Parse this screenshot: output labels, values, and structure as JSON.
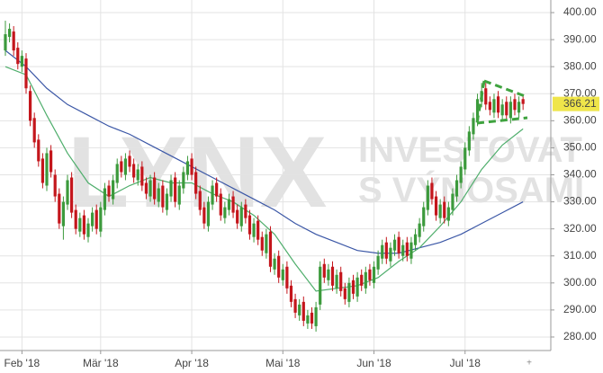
{
  "chart_data": {
    "type": "candlestick",
    "watermark_logo": "LYNX",
    "watermark_slogan": [
      "INVESTOVAT",
      "S VÝNOSAMI"
    ],
    "xlim": [
      -1.3,
      131.7
    ],
    "ylim": [
      275,
      403
    ],
    "xticks": [
      {
        "value": 4,
        "label": "Feb '18"
      },
      {
        "value": 23,
        "label": "Mär '18"
      },
      {
        "value": 45,
        "label": "Apr '18"
      },
      {
        "value": 67,
        "label": "Mai '18"
      },
      {
        "value": 89,
        "label": "Jun '18"
      },
      {
        "value": 111,
        "label": "Jul '18"
      }
    ],
    "yticks": [
      {
        "value": 280,
        "label": "280.00"
      },
      {
        "value": 290,
        "label": "290.00"
      },
      {
        "value": 300,
        "label": "300.00"
      },
      {
        "value": 310,
        "label": "310.00"
      },
      {
        "value": 320,
        "label": "320.00"
      },
      {
        "value": 330,
        "label": "330.00"
      },
      {
        "value": 340,
        "label": "340.00"
      },
      {
        "value": 350,
        "label": "350.00"
      },
      {
        "value": 360,
        "label": "360.00"
      },
      {
        "value": 370,
        "label": "370.00"
      },
      {
        "value": 380,
        "label": "380.00"
      },
      {
        "value": 390,
        "label": "390.00"
      },
      {
        "value": 400,
        "label": "400.00"
      }
    ],
    "grid": true,
    "up_color": "#3c9a3c",
    "down_color": "#c4161c",
    "last_label_color": "#efe54a",
    "open": [
      386,
      391,
      393,
      387,
      380,
      383,
      371,
      361,
      353,
      346,
      336,
      349,
      340,
      333,
      321,
      329,
      339,
      327,
      319,
      325,
      317,
      321,
      327,
      319,
      327,
      336,
      331,
      337,
      345,
      340,
      347,
      344,
      338,
      343,
      337,
      332,
      339,
      330,
      336,
      327,
      332,
      339,
      329,
      335,
      340,
      346,
      341,
      334,
      328,
      321,
      329,
      337,
      333,
      324,
      327,
      332,
      327,
      321,
      329,
      325,
      317,
      323,
      317,
      311,
      319,
      305,
      310,
      301,
      306,
      299,
      294,
      288,
      293,
      285,
      289,
      284,
      292,
      307,
      301,
      306,
      298,
      304,
      298,
      293,
      301,
      295,
      303,
      298,
      305,
      300,
      305,
      309,
      315,
      308,
      312,
      317,
      310,
      315,
      309,
      314,
      317,
      321,
      327,
      337,
      332,
      324,
      330,
      323,
      327,
      332,
      337,
      342,
      349,
      355,
      360,
      367,
      372,
      367,
      363,
      369,
      362,
      367,
      361,
      368,
      363,
      368
    ],
    "high": [
      397,
      396,
      395,
      389,
      386,
      385,
      373,
      363,
      355,
      348,
      350,
      351,
      342,
      335,
      332,
      340,
      341,
      329,
      326,
      327,
      324,
      328,
      329,
      330,
      337,
      338,
      340,
      346,
      347,
      348,
      349,
      346,
      344,
      345,
      339,
      340,
      341,
      337,
      338,
      335,
      340,
      341,
      338,
      343,
      347,
      348,
      343,
      336,
      330,
      332,
      338,
      339,
      335,
      330,
      333,
      334,
      329,
      330,
      331,
      327,
      324,
      325,
      319,
      320,
      321,
      311,
      312,
      307,
      308,
      301,
      296,
      294,
      295,
      290,
      291,
      293,
      308,
      309,
      307,
      308,
      305,
      306,
      300,
      302,
      303,
      304,
      305,
      306,
      307,
      308,
      312,
      316,
      317,
      315,
      318,
      319,
      316,
      317,
      317,
      320,
      324,
      330,
      338,
      339,
      334,
      331,
      332,
      330,
      335,
      340,
      345,
      352,
      358,
      363,
      370,
      374,
      374,
      369,
      370,
      371,
      368,
      369,
      369,
      370,
      369,
      369
    ],
    "low": [
      384,
      389,
      384,
      379,
      378,
      370,
      358,
      350,
      343,
      335,
      334,
      339,
      330,
      320,
      316,
      327,
      324,
      318,
      317,
      316,
      315,
      319,
      318,
      317,
      325,
      330,
      329,
      335,
      339,
      338,
      341,
      337,
      336,
      334,
      331,
      330,
      329,
      328,
      326,
      325,
      330,
      328,
      327,
      333,
      338,
      338,
      331,
      325,
      320,
      319,
      327,
      330,
      323,
      322,
      325,
      324,
      320,
      319,
      322,
      316,
      315,
      314,
      310,
      309,
      304,
      303,
      300,
      299,
      296,
      291,
      287,
      286,
      284,
      283,
      283,
      282,
      290,
      300,
      299,
      297,
      296,
      295,
      292,
      291,
      294,
      293,
      297,
      296,
      299,
      298,
      303,
      307,
      307,
      306,
      310,
      309,
      308,
      308,
      307,
      312,
      315,
      319,
      325,
      329,
      323,
      322,
      322,
      321,
      325,
      330,
      335,
      340,
      347,
      353,
      358,
      365,
      364,
      362,
      361,
      361,
      360,
      360,
      359,
      362,
      361,
      364
    ],
    "close": [
      392,
      394,
      386,
      381,
      384,
      372,
      360,
      352,
      345,
      337,
      348,
      341,
      332,
      322,
      330,
      338,
      326,
      320,
      324,
      318,
      322,
      326,
      320,
      328,
      335,
      332,
      338,
      344,
      341,
      346,
      343,
      339,
      342,
      336,
      333,
      338,
      331,
      335,
      328,
      333,
      338,
      330,
      336,
      341,
      345,
      340,
      333,
      327,
      322,
      330,
      336,
      332,
      325,
      328,
      331,
      326,
      322,
      328,
      324,
      318,
      322,
      316,
      312,
      318,
      306,
      309,
      302,
      305,
      298,
      293,
      289,
      292,
      286,
      288,
      285,
      291,
      306,
      302,
      305,
      299,
      303,
      297,
      294,
      300,
      296,
      302,
      299,
      304,
      301,
      306,
      310,
      314,
      309,
      313,
      316,
      311,
      314,
      310,
      315,
      318,
      322,
      328,
      336,
      331,
      325,
      329,
      324,
      328,
      333,
      338,
      343,
      350,
      356,
      361,
      368,
      371,
      366,
      364,
      368,
      363,
      366,
      362,
      367,
      364,
      367,
      366.21
    ],
    "lines": [
      {
        "color": "#3b57a6",
        "x": [
          0,
          5,
          10,
          15,
          20,
          25,
          30,
          35,
          40,
          45,
          50,
          55,
          60,
          65,
          70,
          75,
          80,
          85,
          90,
          95,
          100,
          105,
          110,
          115,
          120,
          125
        ],
        "values": [
          386,
          380,
          372,
          366,
          362,
          358,
          355,
          351,
          347,
          343,
          339,
          335,
          331,
          327,
          322,
          318,
          315,
          312,
          311,
          311,
          313,
          315,
          318,
          322,
          326,
          330
        ]
      },
      {
        "color": "#4fae6c",
        "x": [
          0,
          5,
          10,
          15,
          20,
          25,
          30,
          35,
          40,
          45,
          50,
          55,
          60,
          65,
          70,
          75,
          80,
          85,
          90,
          95,
          100,
          105,
          110,
          115,
          120,
          125
        ],
        "values": [
          380,
          377,
          362,
          348,
          337,
          332,
          336,
          339,
          337,
          337,
          333,
          330,
          325,
          318,
          307,
          297,
          298,
          299,
          302,
          308,
          313,
          321,
          330,
          342,
          351,
          357
        ]
      }
    ]
  }
}
